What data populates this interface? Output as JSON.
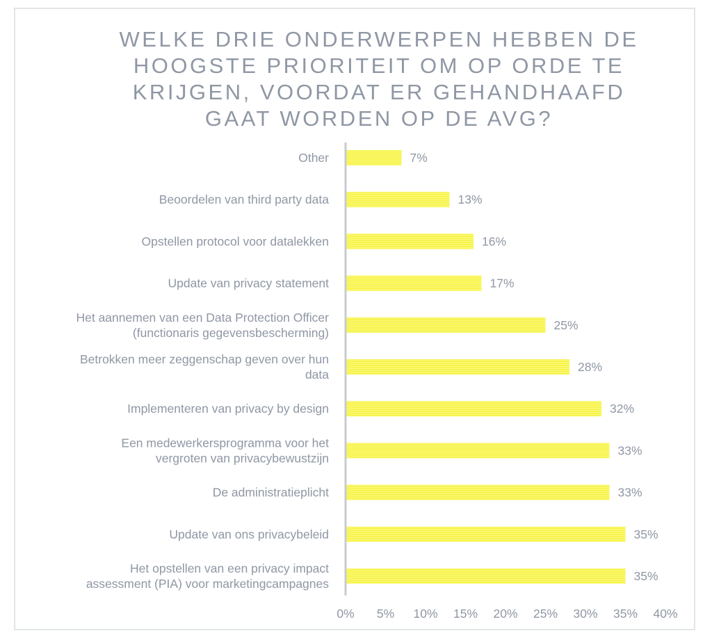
{
  "chart_data": {
    "type": "bar",
    "orientation": "horizontal",
    "title_lines": [
      "WELKE DRIE ONDERWERPEN HEBBEN DE",
      "HOOGSTE PRIORITEIT OM OP ORDE TE",
      "KRIJGEN, VOORDAT ER GEHANDHAAFD",
      "GAAT WORDEN OP DE AVG?"
    ],
    "categories": [
      [
        "Other"
      ],
      [
        "Beoordelen van third party data"
      ],
      [
        "Opstellen protocol voor datalekken"
      ],
      [
        "Update van privacy statement"
      ],
      [
        "Het aannemen van een Data Protection Officer",
        "(functionaris gegevensbescherming)"
      ],
      [
        "Betrokken meer zeggenschap geven over hun",
        "data"
      ],
      [
        "Implementeren van privacy by design"
      ],
      [
        "Een medewerkersprogramma voor het",
        "vergroten van privacybewustzijn"
      ],
      [
        "De administratieplicht"
      ],
      [
        "Update van ons privacybeleid"
      ],
      [
        "Het opstellen van een privacy impact",
        "assessment (PIA) voor marketingcampagnes"
      ]
    ],
    "values": [
      7,
      13,
      16,
      17,
      25,
      28,
      32,
      33,
      33,
      35,
      35
    ],
    "value_labels": [
      "7%",
      "13%",
      "16%",
      "17%",
      "25%",
      "28%",
      "32%",
      "33%",
      "33%",
      "35%",
      "35%"
    ],
    "xlim": [
      0,
      40
    ],
    "xticks": [
      0,
      5,
      10,
      15,
      20,
      25,
      30,
      35,
      40
    ],
    "xtick_labels": [
      "0%",
      "5%",
      "10%",
      "15%",
      "20%",
      "25%",
      "30%",
      "35%",
      "40%"
    ],
    "grid": false,
    "legend": "none",
    "bar_color": "#f7f44e",
    "text_color": "#8f97a4",
    "axis_color": "#c8cbd0"
  }
}
